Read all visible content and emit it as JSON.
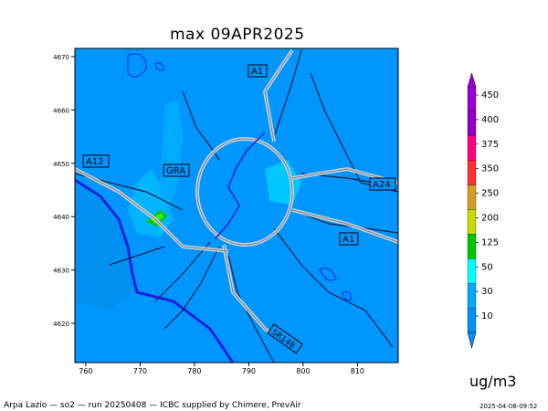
{
  "title": "max 09APR2025",
  "footer": "Arpa Lazio — so2 — run 20250408 — ICBC supplied by Chimere, PrevAir",
  "footer_right": "2025-04-08-09:52",
  "unit": "ug/m3",
  "x_ticks": [
    "760",
    "770",
    "780",
    "790",
    "800",
    "810"
  ],
  "y_ticks": [
    "4670",
    "4660",
    "4650",
    "4640",
    "4630",
    "4620"
  ],
  "legend": {
    "levels": [
      "450",
      "400",
      "375",
      "350",
      "250",
      "200",
      "125",
      "50",
      "30",
      "10"
    ],
    "colors": [
      "#9b00d8",
      "#9000c8",
      "#ff0080",
      "#ff3030",
      "#d4a020",
      "#c8dc00",
      "#00c800",
      "#00ffff",
      "#00aaff",
      "#0090ff"
    ]
  },
  "colors": {
    "base": "#0096ff",
    "high": "#00c8ff",
    "peak": "#00c800",
    "coast": "#2020e0"
  },
  "roads": [
    "A1",
    "A12",
    "GRA",
    "A24",
    "A1",
    "SR148"
  ]
}
